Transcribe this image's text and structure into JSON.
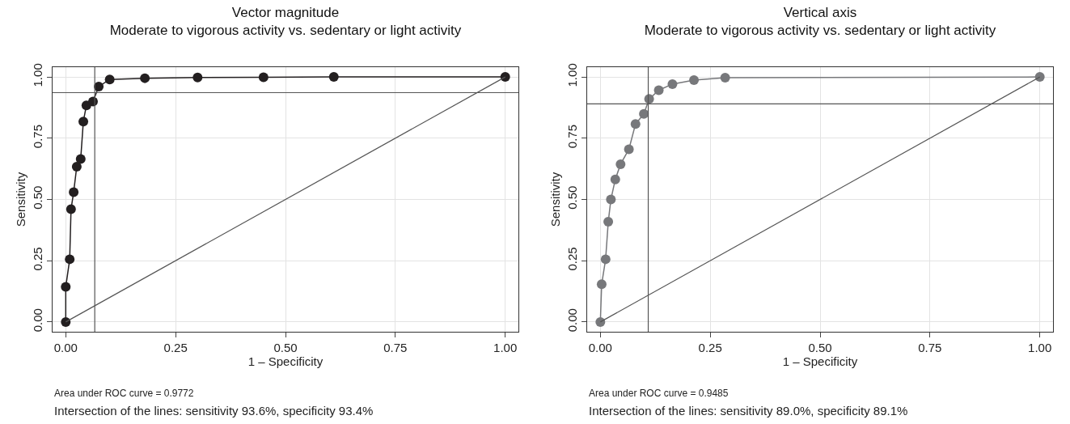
{
  "chart_data": [
    {
      "type": "line",
      "title": "Vector magnitude",
      "subtitle": "Moderate to vigorous activity vs. sedentary or light activity",
      "xlabel": "1 – Specificity",
      "ylabel": "Sensitivity",
      "xlim": [
        -0.03,
        1.03
      ],
      "ylim": [
        -0.04,
        1.04
      ],
      "xticks": [
        {
          "value": 0,
          "label": "0.00"
        },
        {
          "value": 0.25,
          "label": "0.25"
        },
        {
          "value": 0.5,
          "label": "0.50"
        },
        {
          "value": 0.75,
          "label": "0.75"
        },
        {
          "value": 1,
          "label": "1.00"
        }
      ],
      "yticks": [
        {
          "value": 0,
          "label": "0.00"
        },
        {
          "value": 0.25,
          "label": "0.25"
        },
        {
          "value": 0.5,
          "label": "0.50"
        },
        {
          "value": 0.75,
          "label": "0.75"
        },
        {
          "value": 1,
          "label": "1.00"
        }
      ],
      "grid": true,
      "marker": "circle",
      "line_style": "solid",
      "series": [
        {
          "color": "#231f20",
          "x": [
            0,
            0,
            0.009,
            0.012,
            0.018,
            0.025,
            0.034,
            0.04,
            0.047,
            0.062,
            0.075,
            0.1,
            0.18,
            0.3,
            0.45,
            0.61,
            1
          ],
          "values": [
            0,
            0.143,
            0.256,
            0.46,
            0.53,
            0.634,
            0.665,
            0.818,
            0.884,
            0.9,
            0.961,
            0.99,
            0.995,
            0.998,
            0.999,
            1,
            1
          ]
        },
        {
          "type": "line",
          "marker": "none",
          "color": "#555555",
          "x": [
            0,
            1
          ],
          "values": [
            0,
            1
          ]
        }
      ],
      "ref_lines": [
        {
          "axis": "x",
          "value": 0.066,
          "color": "#555555"
        },
        {
          "axis": "y",
          "value": 0.936,
          "color": "#555555"
        }
      ],
      "annotations": [
        "Area under ROC curve = 0.9772",
        "Intersection of the lines: sensitivity 93.6%, specificity 93.4%"
      ]
    },
    {
      "type": "line",
      "title": "Vertical axis",
      "subtitle": "Moderate to vigorous activity vs. sedentary or light activity",
      "xlabel": "1 – Specificity",
      "ylabel": "Sensitivity",
      "xlim": [
        -0.03,
        1.03
      ],
      "ylim": [
        -0.04,
        1.04
      ],
      "xticks": [
        {
          "value": 0,
          "label": "0.00"
        },
        {
          "value": 0.25,
          "label": "0.25"
        },
        {
          "value": 0.5,
          "label": "0.50"
        },
        {
          "value": 0.75,
          "label": "0.75"
        },
        {
          "value": 1,
          "label": "1.00"
        }
      ],
      "yticks": [
        {
          "value": 0,
          "label": "0.00"
        },
        {
          "value": 0.25,
          "label": "0.25"
        },
        {
          "value": 0.5,
          "label": "0.50"
        },
        {
          "value": 0.75,
          "label": "0.75"
        },
        {
          "value": 1,
          "label": "1.00"
        }
      ],
      "grid": true,
      "marker": "circle",
      "line_style": "solid",
      "series": [
        {
          "color": "#77787b",
          "x": [
            0,
            0.003,
            0.012,
            0.018,
            0.024,
            0.034,
            0.046,
            0.065,
            0.08,
            0.099,
            0.111,
            0.133,
            0.164,
            0.213,
            0.284,
            1
          ],
          "values": [
            0,
            0.154,
            0.256,
            0.409,
            0.5,
            0.582,
            0.644,
            0.705,
            0.808,
            0.849,
            0.91,
            0.946,
            0.971,
            0.987,
            0.997,
            1
          ]
        },
        {
          "type": "line",
          "marker": "none",
          "color": "#555555",
          "x": [
            0,
            1
          ],
          "values": [
            0,
            1
          ]
        }
      ],
      "ref_lines": [
        {
          "axis": "x",
          "value": 0.109,
          "color": "#555555"
        },
        {
          "axis": "y",
          "value": 0.89,
          "color": "#555555"
        }
      ],
      "annotations": [
        "Area under ROC curve = 0.9485",
        "Intersection of the lines: sensitivity 89.0%, specificity 89.1%"
      ]
    }
  ]
}
